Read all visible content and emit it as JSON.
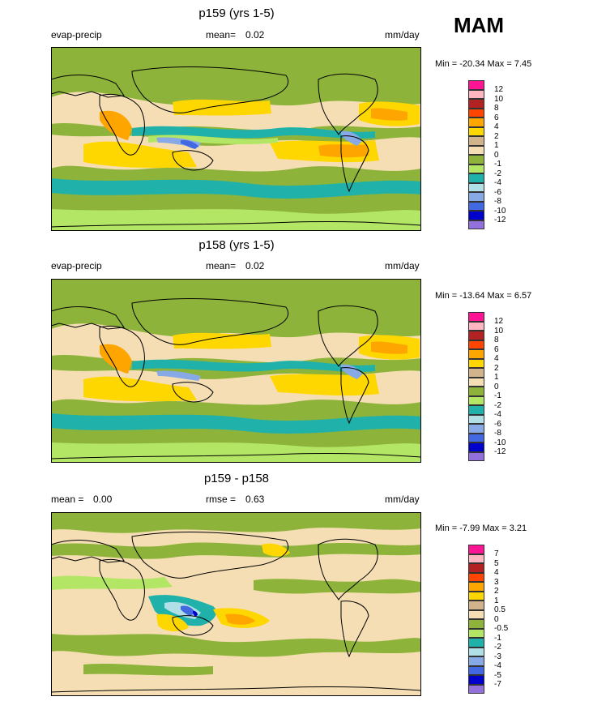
{
  "figure": {
    "season": "MAM"
  },
  "chart_data": [
    {
      "type": "heatmap",
      "title": "p159 (yrs 1-5)",
      "variable": "evap-precip",
      "mean_label": "mean=",
      "mean_value": "0.02",
      "units": "mm/day",
      "minmax": "Min = -20.34 Max =   7.45",
      "legend_labels": [
        "12",
        "10",
        "8",
        "6",
        "4",
        "2",
        "1",
        "0",
        "-1",
        "-2",
        "-4",
        "-6",
        "-8",
        "-10",
        "-12"
      ],
      "legend_colors": [
        "#ff1493",
        "#ffb6c1",
        "#b22222",
        "#ff4500",
        "#ffa500",
        "#ffd700",
        "#d2b48c",
        "#f5deb3",
        "#8db33a",
        "#b3e664",
        "#20b2aa",
        "#b0e0e6",
        "#87a9e6",
        "#4169e1",
        "#0000cd",
        "#9370db"
      ]
    },
    {
      "type": "heatmap",
      "title": "p158 (yrs 1-5)",
      "variable": "evap-precip",
      "mean_label": "mean=",
      "mean_value": "0.02",
      "units": "mm/day",
      "minmax": "Min = -13.64 Max =   6.57",
      "legend_labels": [
        "12",
        "10",
        "8",
        "6",
        "4",
        "2",
        "1",
        "0",
        "-1",
        "-2",
        "-4",
        "-6",
        "-8",
        "-10",
        "-12"
      ],
      "legend_colors": [
        "#ff1493",
        "#ffb6c1",
        "#b22222",
        "#ff4500",
        "#ffa500",
        "#ffd700",
        "#d2b48c",
        "#f5deb3",
        "#8db33a",
        "#b3e664",
        "#20b2aa",
        "#b0e0e6",
        "#87a9e6",
        "#4169e1",
        "#0000cd",
        "#9370db"
      ]
    },
    {
      "type": "heatmap",
      "title": "p159 - p158",
      "mean_label": "mean =",
      "mean_value": "0.00",
      "rmse_label": "rmse =",
      "rmse_value": "0.63",
      "units": "mm/day",
      "minmax": "Min =  -7.99 Max =   3.21",
      "legend_labels": [
        "7",
        "5",
        "4",
        "3",
        "2",
        "1",
        "0.5",
        "0",
        "-0.5",
        "-1",
        "-2",
        "-3",
        "-4",
        "-5",
        "-7"
      ],
      "legend_colors": [
        "#ff1493",
        "#ffb6c1",
        "#b22222",
        "#ff4500",
        "#ffa500",
        "#ffd700",
        "#d2b48c",
        "#f5deb3",
        "#8db33a",
        "#b3e664",
        "#20b2aa",
        "#b0e0e6",
        "#87a9e6",
        "#4169e1",
        "#0000cd",
        "#9370db"
      ]
    }
  ]
}
